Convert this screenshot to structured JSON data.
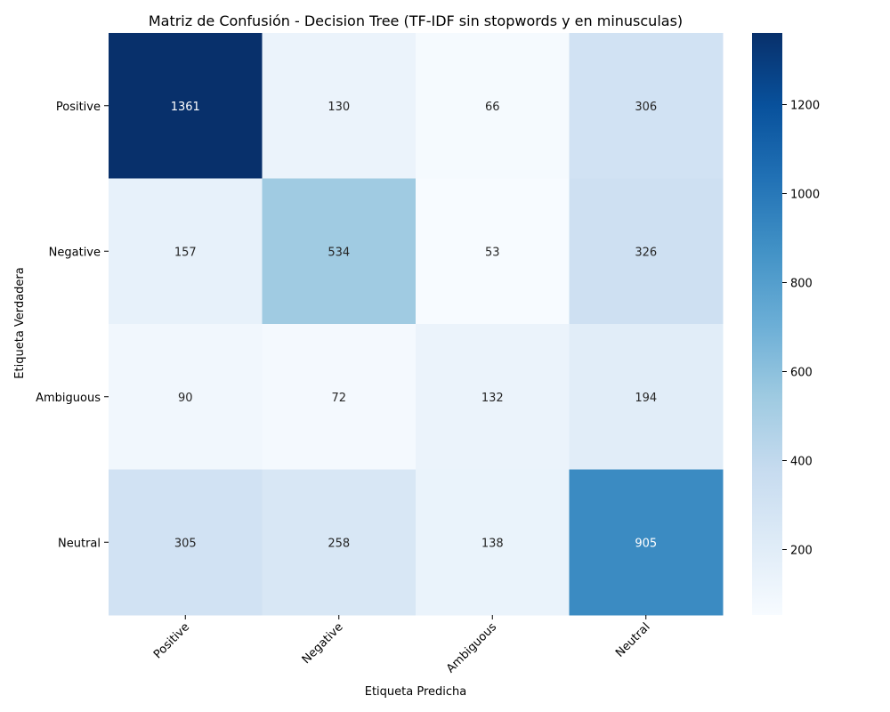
{
  "chart_data": {
    "type": "heatmap",
    "title": "Matriz de Confusión - Decision Tree (TF-IDF sin stopwords y en minusculas)",
    "xlabel": "Etiqueta Predicha",
    "ylabel": "Etiqueta Verdadera",
    "x_categories": [
      "Positive",
      "Negative",
      "Ambiguous",
      "Neutral"
    ],
    "y_categories": [
      "Positive",
      "Negative",
      "Ambiguous",
      "Neutral"
    ],
    "values": [
      [
        1361,
        130,
        66,
        306
      ],
      [
        157,
        534,
        53,
        326
      ],
      [
        90,
        72,
        132,
        194
      ],
      [
        305,
        258,
        138,
        905
      ]
    ],
    "colormap": "Blues",
    "color_min": 53,
    "color_max": 1361,
    "colorbar_ticks": [
      200,
      400,
      600,
      800,
      1000,
      1200
    ],
    "colorbar_tick_labels": [
      "200",
      "400",
      "600",
      "800",
      "1000",
      "1200"
    ],
    "x_tick_rotation_deg": 45
  }
}
